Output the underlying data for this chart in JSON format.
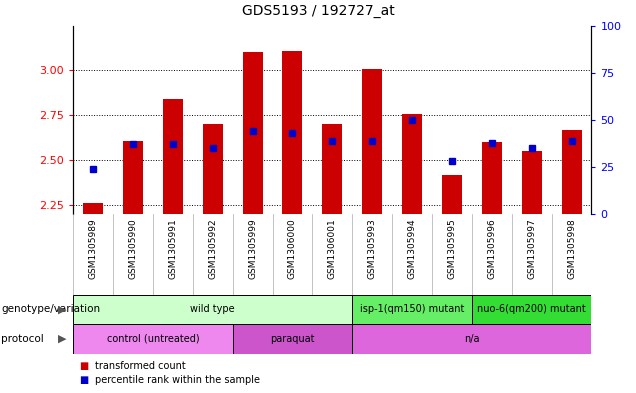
{
  "title": "GDS5193 / 192727_at",
  "samples": [
    "GSM1305989",
    "GSM1305990",
    "GSM1305991",
    "GSM1305992",
    "GSM1305999",
    "GSM1306000",
    "GSM1306001",
    "GSM1305993",
    "GSM1305994",
    "GSM1305995",
    "GSM1305996",
    "GSM1305997",
    "GSM1305998"
  ],
  "red_values": [
    2.26,
    2.61,
    2.84,
    2.7,
    3.1,
    3.11,
    2.7,
    3.01,
    2.76,
    2.42,
    2.6,
    2.55,
    2.67
  ],
  "blue_pct": [
    24,
    37,
    37,
    35,
    44,
    43,
    39,
    39,
    50,
    28,
    38,
    35,
    39
  ],
  "ymin": 2.2,
  "ymax": 3.25,
  "yticks_left": [
    2.25,
    2.5,
    2.75,
    3.0
  ],
  "yticks_right": [
    0,
    25,
    50,
    75,
    100
  ],
  "bar_color": "#CC0000",
  "dot_color": "#0000CC",
  "bar_bottom": 2.2,
  "genotype_groups": [
    {
      "label": "wild type",
      "start": 0,
      "end": 7,
      "color": "#ccffcc"
    },
    {
      "label": "isp-1(qm150) mutant",
      "start": 7,
      "end": 10,
      "color": "#66ee66"
    },
    {
      "label": "nuo-6(qm200) mutant",
      "start": 10,
      "end": 13,
      "color": "#33dd33"
    }
  ],
  "protocol_groups": [
    {
      "label": "control (untreated)",
      "start": 0,
      "end": 4,
      "color": "#ee88ee"
    },
    {
      "label": "paraquat",
      "start": 4,
      "end": 7,
      "color": "#cc55cc"
    },
    {
      "label": "n/a",
      "start": 7,
      "end": 13,
      "color": "#dd66dd"
    }
  ],
  "xtick_bg_color": "#d8d8d8",
  "xtick_grid_color": "#aaaaaa",
  "plot_bg_color": "#ffffff",
  "legend_red_label": "transformed count",
  "legend_blue_label": "percentile rank within the sample",
  "geno_label": "genotype/variation",
  "proto_label": "protocol"
}
